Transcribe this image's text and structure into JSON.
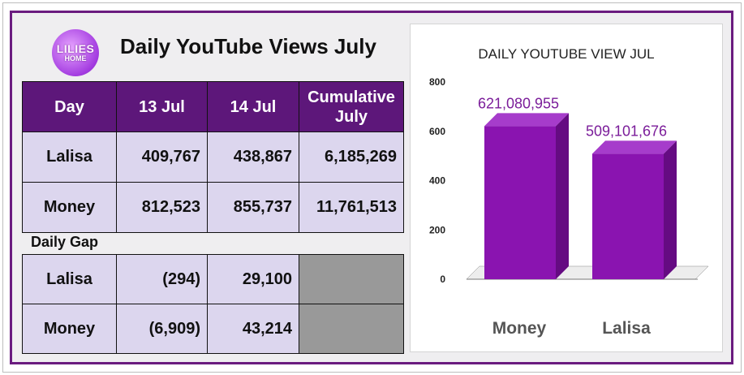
{
  "logo": {
    "line1": "LILIES",
    "line2": "HOME"
  },
  "title": "Daily YouTube Views July",
  "table": {
    "headers": [
      "Day",
      "13 Jul",
      "14 Jul",
      "Cumulative July"
    ],
    "rows": [
      {
        "name": "Lalisa",
        "d13": "409,767",
        "d14": "438,867",
        "cum": "6,185,269"
      },
      {
        "name": "Money",
        "d13": "812,523",
        "d14": "855,737",
        "cum": "11,761,513"
      }
    ]
  },
  "gap": {
    "label": "Daily Gap",
    "rows": [
      {
        "name": "Lalisa",
        "d13": "(294)",
        "d14": "29,100"
      },
      {
        "name": "Money",
        "d13": "(6,909)",
        "d14": "43,214"
      }
    ]
  },
  "chart_data": {
    "type": "bar",
    "title": "DAILY YOUTUBE VIEW JUL",
    "categories": [
      "Money",
      "Lalisa"
    ],
    "values": [
      621080955,
      509101676
    ],
    "value_labels": [
      "621,080,955",
      "509,101,676"
    ],
    "yticks": [
      "0",
      "200",
      "400",
      "600",
      "800"
    ],
    "ylim": [
      0,
      800
    ],
    "bar_color": "#8a14b0",
    "label_color": "#7b1d9a",
    "grid": false
  }
}
